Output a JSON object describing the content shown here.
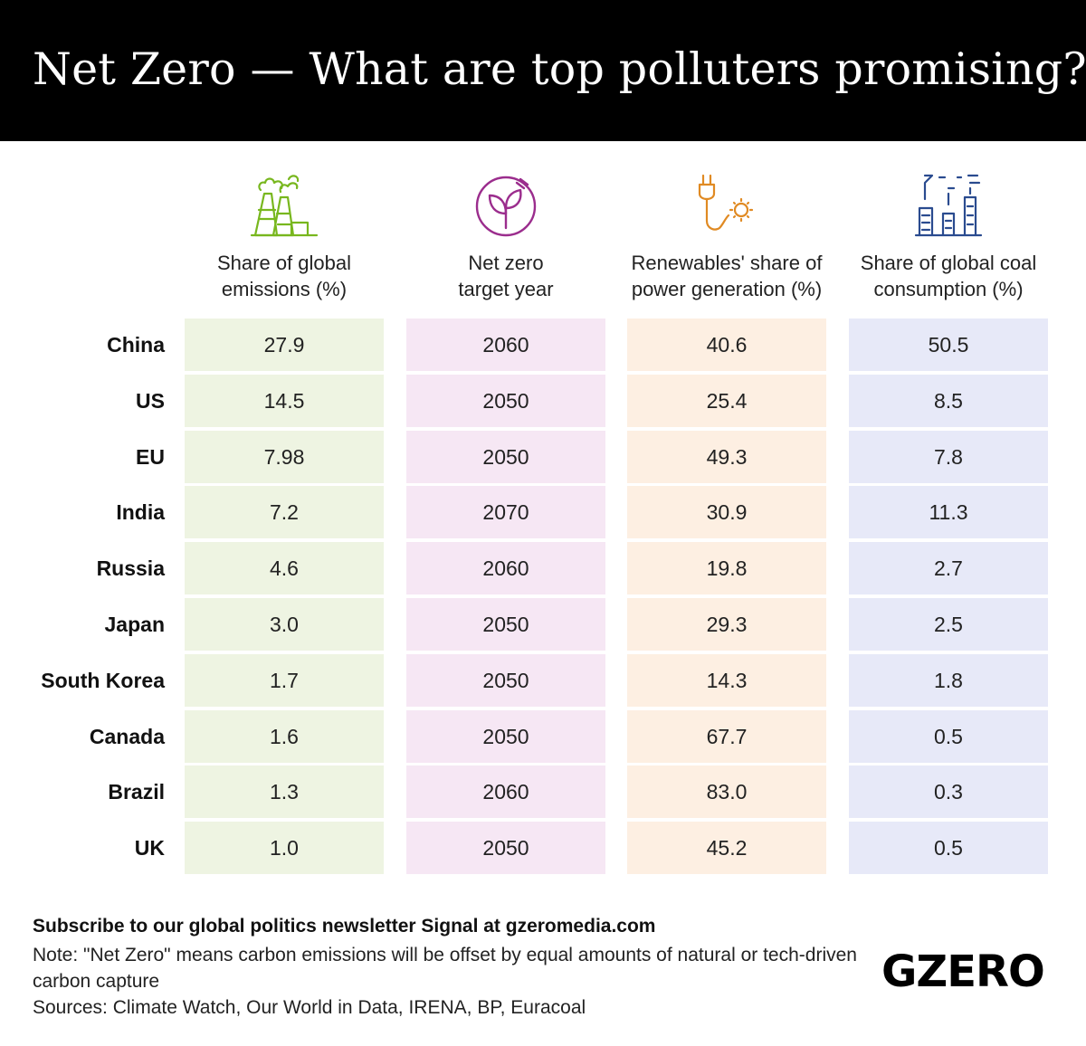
{
  "title": "Net Zero — What are top polluters promising?",
  "colors": {
    "header_bg": "#000000",
    "emissions": "#78b71e",
    "net_zero": "#9b2d8d",
    "renewables": "#e08a23",
    "coal": "#2a4b8f",
    "emissions_cell": "#eef4e2",
    "net_zero_cell": "#f6e7f4",
    "renewables_cell": "#fdefe2",
    "coal_cell": "#e7e9f8"
  },
  "chart_data": {
    "type": "table",
    "columns": [
      {
        "key": "emissions",
        "label": "Share of global\nemissions (%)",
        "icon": "factory-smoke-icon"
      },
      {
        "key": "net_zero",
        "label": "Net zero\ntarget year",
        "icon": "leaf-plug-icon"
      },
      {
        "key": "renewables",
        "label": "Renewables' share of\npower generation (%)",
        "icon": "solar-plug-icon"
      },
      {
        "key": "coal",
        "label": "Share of global coal\nconsumption (%)",
        "icon": "power-plant-icon"
      }
    ],
    "rows": [
      {
        "country": "China",
        "values": [
          "27.9",
          "2060",
          "40.6",
          "50.5"
        ]
      },
      {
        "country": "US",
        "values": [
          "14.5",
          "2050",
          "25.4",
          "8.5"
        ]
      },
      {
        "country": "EU",
        "values": [
          "7.98",
          "2050",
          "49.3",
          "7.8"
        ]
      },
      {
        "country": "India",
        "values": [
          "7.2",
          "2070",
          "30.9",
          "11.3"
        ]
      },
      {
        "country": "Russia",
        "values": [
          "4.6",
          "2060",
          "19.8",
          "2.7"
        ]
      },
      {
        "country": "Japan",
        "values": [
          "3.0",
          "2050",
          "29.3",
          "2.5"
        ]
      },
      {
        "country": "South Korea",
        "values": [
          "1.7",
          "2050",
          "14.3",
          "1.8"
        ]
      },
      {
        "country": "Canada",
        "values": [
          "1.6",
          "2050",
          "67.7",
          "0.5"
        ]
      },
      {
        "country": "Brazil",
        "values": [
          "1.3",
          "2060",
          "83.0",
          "0.3"
        ]
      },
      {
        "country": "UK",
        "values": [
          "1.0",
          "2050",
          "45.2",
          "0.5"
        ]
      }
    ]
  },
  "footer": {
    "subscribe": "Subscribe to our global politics newsletter Signal at gzeromedia.com",
    "note": "Note: \"Net Zero\" means carbon emissions will be offset by equal amounts of natural or tech-driven carbon capture",
    "sources": "Sources: Climate Watch, Our World in Data, IRENA, BP, Euracoal"
  },
  "logo": "GZERO"
}
